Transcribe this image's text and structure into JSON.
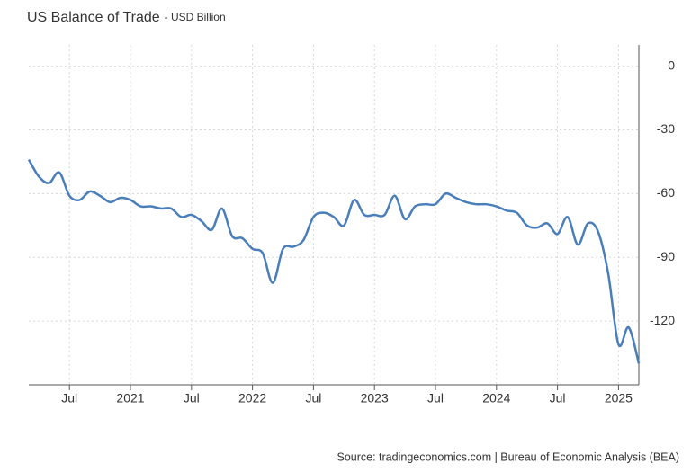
{
  "chart_data": {
    "type": "line",
    "title": "US Balance of Trade",
    "subtitle": "- USD Billion",
    "source": "Source: tradingeconomics.com | Bureau of Economic Analysis (BEA)",
    "x": [
      "2020-03",
      "2020-04",
      "2020-05",
      "2020-06",
      "2020-07",
      "2020-08",
      "2020-09",
      "2020-10",
      "2020-11",
      "2020-12",
      "2021-01",
      "2021-02",
      "2021-03",
      "2021-04",
      "2021-05",
      "2021-06",
      "2021-07",
      "2021-08",
      "2021-09",
      "2021-10",
      "2021-11",
      "2021-12",
      "2022-01",
      "2022-02",
      "2022-03",
      "2022-04",
      "2022-05",
      "2022-06",
      "2022-07",
      "2022-08",
      "2022-09",
      "2022-10",
      "2022-11",
      "2022-12",
      "2023-01",
      "2023-02",
      "2023-03",
      "2023-04",
      "2023-05",
      "2023-06",
      "2023-07",
      "2023-08",
      "2023-09",
      "2023-10",
      "2023-11",
      "2023-12",
      "2024-01",
      "2024-02",
      "2024-03",
      "2024-04",
      "2024-05",
      "2024-06",
      "2024-07",
      "2024-08",
      "2024-09",
      "2024-10",
      "2024-11",
      "2024-12",
      "2025-01",
      "2025-02",
      "2025-03"
    ],
    "series": [
      {
        "name": "Balance of Trade",
        "color": "#4a7ebb",
        "values": [
          -44,
          -52,
          -55,
          -50,
          -61,
          -63,
          -59,
          -61,
          -64,
          -62,
          -63,
          -66,
          -66,
          -67,
          -67,
          -71,
          -70,
          -73,
          -77,
          -67,
          -80,
          -81,
          -86,
          -88,
          -102,
          -86,
          -85,
          -82,
          -71,
          -69,
          -71,
          -75,
          -63,
          -70,
          -70,
          -70,
          -61,
          -72,
          -66,
          -65,
          -65,
          -60,
          -62,
          -64,
          -65,
          -65,
          -66,
          -68,
          -69,
          -75,
          -76,
          -74,
          -79,
          -71,
          -84,
          -74,
          -78,
          -98,
          -131,
          -123,
          -140
        ]
      }
    ],
    "xlim": [
      "2020-03",
      "2025-03"
    ],
    "xticks": [
      {
        "value": "2020-07",
        "label": "Jul"
      },
      {
        "value": "2021-01",
        "label": "2021"
      },
      {
        "value": "2021-07",
        "label": "Jul"
      },
      {
        "value": "2022-01",
        "label": "2022"
      },
      {
        "value": "2022-07",
        "label": "Jul"
      },
      {
        "value": "2023-01",
        "label": "2023"
      },
      {
        "value": "2023-07",
        "label": "Jul"
      },
      {
        "value": "2024-01",
        "label": "2024"
      },
      {
        "value": "2024-07",
        "label": "Jul"
      },
      {
        "value": "2025-01",
        "label": "2025"
      }
    ],
    "ylim": [
      -150,
      10
    ],
    "yticks": [
      0,
      -30,
      -60,
      -90,
      -120
    ],
    "grid": true
  }
}
